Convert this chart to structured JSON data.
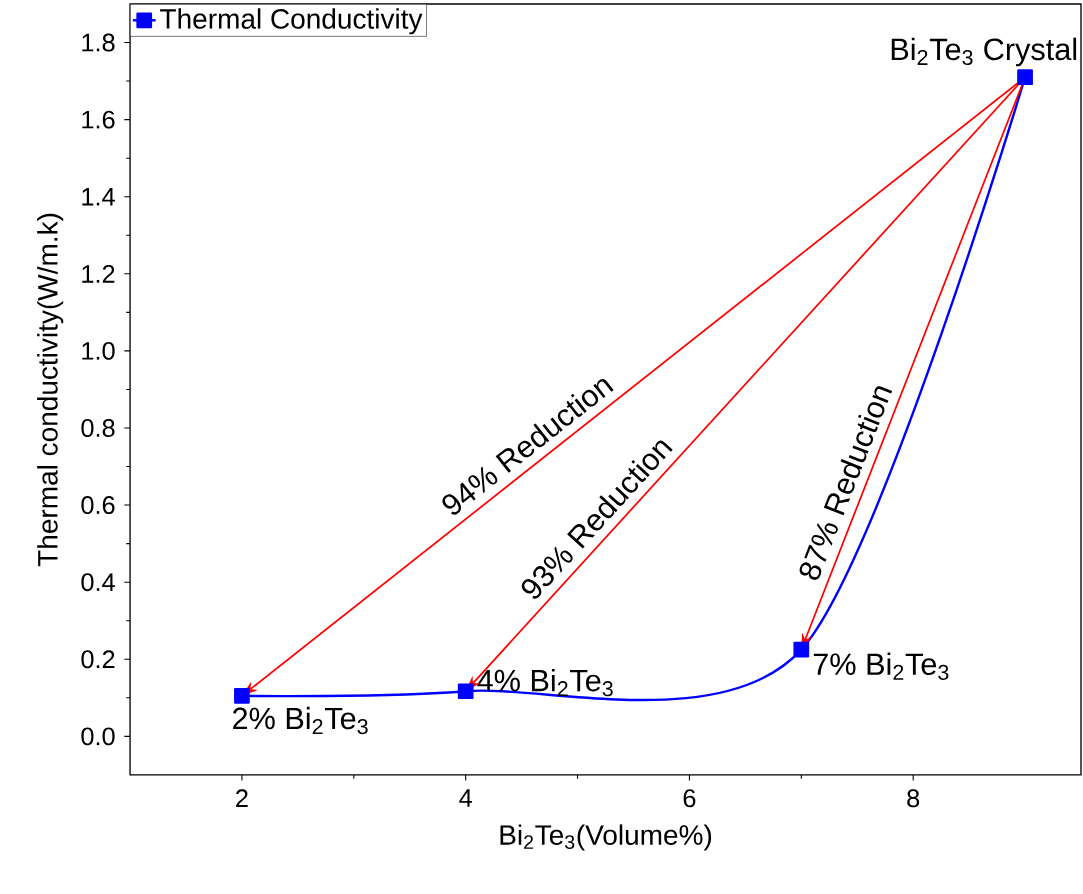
{
  "chart_data": {
    "type": "line",
    "xlabel": "Bi$_{2}$Te$_{3}$(Volume%)",
    "ylabel": "Thermal conductivity(W/m.k)",
    "x": [
      2,
      4,
      7,
      9
    ],
    "series": [
      {
        "name": "Thermal Conductivity",
        "color": "#0000ff",
        "values": [
          0.105,
          0.117,
          0.225,
          1.71
        ]
      }
    ],
    "xlim": [
      1,
      9.5
    ],
    "xticks": [
      2,
      4,
      6,
      8
    ],
    "ylim": [
      -0.1,
      1.9
    ],
    "yticks": [
      {
        "value": 0,
        "label": "0.0"
      },
      {
        "value": 0.2,
        "label": "0.2"
      },
      {
        "value": 0.4,
        "label": "0.4"
      },
      {
        "value": 0.6,
        "label": "0.6"
      },
      {
        "value": 0.8,
        "label": "0.8"
      },
      {
        "value": 1.0,
        "label": "1.0"
      },
      {
        "value": 1.2,
        "label": "1.2"
      },
      {
        "value": 1.4,
        "label": "1.4"
      },
      {
        "value": 1.6,
        "label": "1.6"
      },
      {
        "value": 1.8,
        "label": "1.8"
      }
    ],
    "marker": "square",
    "line_style": "solid",
    "legend": "top left",
    "grid": false,
    "annotations": [
      {
        "text": "2% Bi$_{2}$Te$_{3}$",
        "x": 2,
        "y": 0.105
      },
      {
        "text": "4% Bi$_{2}$Te$_{3}$",
        "x": 4,
        "y": 0.117
      },
      {
        "text": "7% Bi$_{2}$Te$_{3}$",
        "x": 7,
        "y": 0.225
      },
      {
        "text": "Bi$_{2}$Te$_{3}$ Crystal",
        "x": 9,
        "y": 1.71
      },
      "94% Reduction",
      "93% Reduction",
      "87% Reduction"
    ]
  }
}
